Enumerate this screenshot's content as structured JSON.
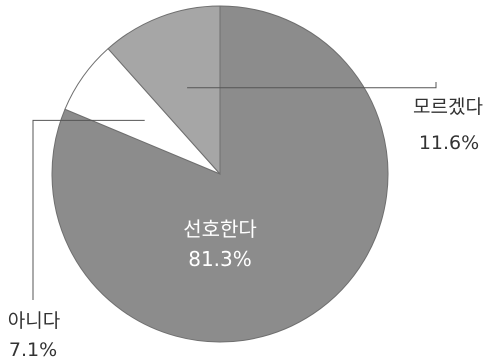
{
  "chart_data": {
    "type": "pie",
    "slices": [
      {
        "label": "선호한다",
        "value": 81.3,
        "value_label": "81.3%",
        "color": "#8c8c8c"
      },
      {
        "label": "아니다",
        "value": 7.1,
        "value_label": "7.1%",
        "color": "#ffffff"
      },
      {
        "label": "모르겠다",
        "value": 11.6,
        "value_label": "11.6%",
        "color": "#a6a6a6"
      }
    ],
    "start": "top, clockwise",
    "legend": "none (callout labels)"
  }
}
